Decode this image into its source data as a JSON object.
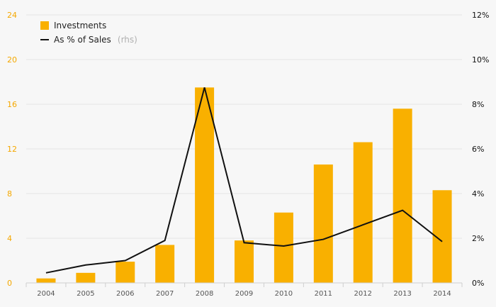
{
  "chart_data": {
    "type": "bar",
    "categories": [
      "2004",
      "2005",
      "2006",
      "2007",
      "2008",
      "2009",
      "2010",
      "2011",
      "2012",
      "2013",
      "2014"
    ],
    "series": [
      {
        "name": "Investments",
        "type": "bar",
        "axis": "left",
        "color": "#f9b000",
        "values": [
          0.4,
          0.9,
          1.9,
          3.4,
          17.5,
          3.8,
          6.3,
          10.6,
          12.6,
          15.6,
          8.3
        ]
      },
      {
        "name": "As % of Sales",
        "legend_suffix": "(rhs)",
        "type": "line",
        "axis": "right",
        "color": "#111111",
        "values": [
          0.45,
          0.8,
          1.0,
          1.9,
          8.75,
          1.8,
          1.65,
          1.95,
          2.6,
          3.25,
          1.85
        ]
      }
    ],
    "y_left": {
      "min": 0,
      "max": 24,
      "ticks": [
        "0",
        "4",
        "8",
        "12",
        "16",
        "20",
        "24"
      ],
      "tick_values": [
        0,
        4,
        8,
        12,
        16,
        20,
        24
      ],
      "color": "#f5a800"
    },
    "y_right": {
      "min": 0,
      "max": 12,
      "ticks": [
        "0%",
        "2%",
        "4%",
        "6%",
        "8%",
        "10%",
        "12%"
      ],
      "tick_values": [
        0,
        2,
        4,
        6,
        8,
        10,
        12
      ],
      "color": "#111111"
    },
    "title": "",
    "xlabel": "",
    "ylabel": "",
    "grid": true,
    "legend": "top-left"
  }
}
